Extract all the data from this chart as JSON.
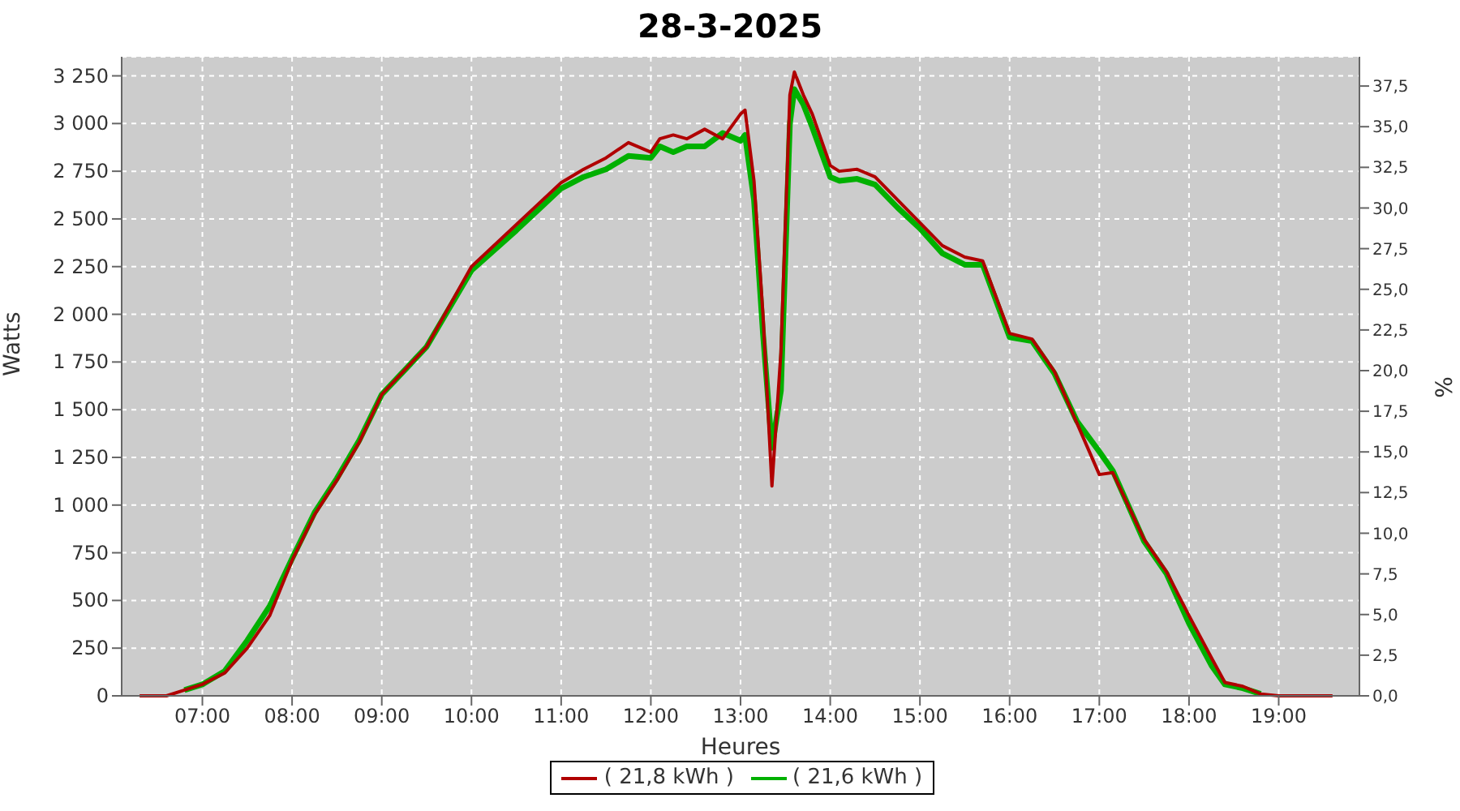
{
  "chart_data": {
    "type": "line",
    "title": "28-3-2025",
    "xlabel": "Heures",
    "ylabel": "Watts",
    "y2label": "%",
    "x": [
      6.3,
      6.6,
      6.8,
      7.0,
      7.25,
      7.5,
      7.75,
      8.0,
      8.25,
      8.5,
      8.75,
      9.0,
      9.5,
      10.0,
      10.5,
      11.0,
      11.25,
      11.5,
      11.75,
      12.0,
      12.1,
      12.25,
      12.4,
      12.6,
      12.8,
      13.0,
      13.05,
      13.15,
      13.25,
      13.35,
      13.45,
      13.55,
      13.6,
      13.7,
      13.8,
      14.0,
      14.1,
      14.3,
      14.5,
      14.75,
      15.0,
      15.25,
      15.5,
      15.7,
      16.0,
      16.25,
      16.5,
      16.75,
      17.0,
      17.15,
      17.5,
      17.75,
      18.0,
      18.25,
      18.4,
      18.6,
      18.8,
      19.0,
      19.6
    ],
    "series": [
      {
        "name": "( 21,8 kWh )",
        "color": "#b00000",
        "values": [
          0,
          0,
          30,
          60,
          120,
          250,
          420,
          710,
          950,
          1130,
          1330,
          1580,
          1830,
          2250,
          2470,
          2690,
          2760,
          2820,
          2900,
          2850,
          2920,
          2940,
          2920,
          2970,
          2920,
          3050,
          3070,
          2700,
          2000,
          1100,
          1800,
          3150,
          3270,
          3150,
          3050,
          2780,
          2750,
          2760,
          2720,
          2600,
          2480,
          2360,
          2300,
          2280,
          1900,
          1870,
          1700,
          1430,
          1160,
          1170,
          820,
          650,
          420,
          200,
          70,
          50,
          10,
          0,
          0
        ]
      },
      {
        "name": "( 21,6 kWh )",
        "color": "#00b000",
        "values": [
          null,
          null,
          30,
          60,
          130,
          290,
          470,
          720,
          960,
          1140,
          1340,
          1580,
          1830,
          2230,
          2440,
          2660,
          2720,
          2760,
          2830,
          2820,
          2880,
          2850,
          2880,
          2880,
          2950,
          2910,
          2940,
          2600,
          1900,
          1300,
          1600,
          3000,
          3180,
          3100,
          2980,
          2720,
          2700,
          2710,
          2680,
          2560,
          2450,
          2320,
          2260,
          2260,
          1880,
          1860,
          1690,
          1440,
          1280,
          1180,
          810,
          640,
          380,
          160,
          60,
          40,
          10,
          null,
          null
        ]
      }
    ],
    "xlim": [
      6.1,
      19.9
    ],
    "xticks": [
      {
        "value": 7,
        "label": "07:00"
      },
      {
        "value": 8,
        "label": "08:00"
      },
      {
        "value": 9,
        "label": "09:00"
      },
      {
        "value": 10,
        "label": "10:00"
      },
      {
        "value": 11,
        "label": "11:00"
      },
      {
        "value": 12,
        "label": "12:00"
      },
      {
        "value": 13,
        "label": "13:00"
      },
      {
        "value": 14,
        "label": "14:00"
      },
      {
        "value": 15,
        "label": "15:00"
      },
      {
        "value": 16,
        "label": "16:00"
      },
      {
        "value": 17,
        "label": "17:00"
      },
      {
        "value": 18,
        "label": "18:00"
      },
      {
        "value": 19,
        "label": "19:00"
      }
    ],
    "ylim": [
      0,
      3350
    ],
    "yticks": [
      0,
      250,
      500,
      750,
      {
        "value": 1000,
        "label": "1 000"
      },
      {
        "value": 1250,
        "label": "1 250"
      },
      {
        "value": 1500,
        "label": "1 500"
      },
      {
        "value": 1750,
        "label": "1 750"
      },
      {
        "value": 2000,
        "label": "2 000"
      },
      {
        "value": 2250,
        "label": "2 250"
      },
      {
        "value": 2500,
        "label": "2 500"
      },
      {
        "value": 2750,
        "label": "2 750"
      },
      {
        "value": 3000,
        "label": "3 000"
      },
      {
        "value": 3250,
        "label": "3 250"
      }
    ],
    "y2lim": [
      0,
      39.3
    ],
    "y2ticks": [
      {
        "value": 0,
        "label": "0,0"
      },
      {
        "value": 2.5,
        "label": "2,5"
      },
      {
        "value": 5,
        "label": "5,0"
      },
      {
        "value": 7.5,
        "label": "7,5"
      },
      {
        "value": 10,
        "label": "10,0"
      },
      {
        "value": 12.5,
        "label": "12,5"
      },
      {
        "value": 15,
        "label": "15,0"
      },
      {
        "value": 17.5,
        "label": "17,5"
      },
      {
        "value": 20,
        "label": "20,0"
      },
      {
        "value": 22.5,
        "label": "22,5"
      },
      {
        "value": 25,
        "label": "25,0"
      },
      {
        "value": 27.5,
        "label": "27,5"
      },
      {
        "value": 30,
        "label": "30,0"
      },
      {
        "value": 32.5,
        "label": "32,5"
      },
      {
        "value": 35,
        "label": "35,0"
      },
      {
        "value": 37.5,
        "label": "37,5"
      }
    ],
    "grid": true,
    "legend": "bottom",
    "marker": "none",
    "line_style": "solid"
  }
}
